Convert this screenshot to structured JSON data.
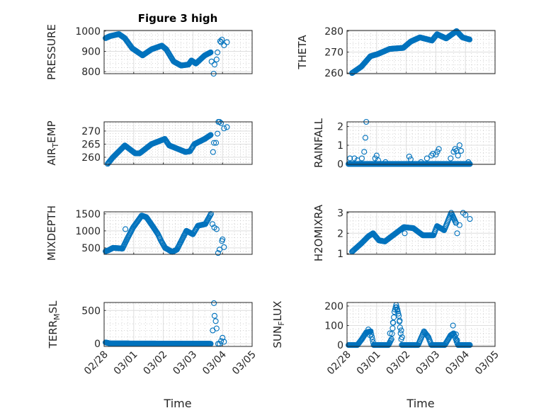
{
  "title": "Figure 3 high",
  "marker_color": "#0072BD",
  "xlabel": "Time",
  "x_ticks": [
    "02/28",
    "03/01",
    "03/02",
    "03/03",
    "03/04",
    "03/05"
  ],
  "chart_data": [
    {
      "type": "scatter",
      "id": "pressure",
      "ylabel": {
        "main": "PRESSURE",
        "sub": "",
        "rest": ""
      },
      "ylim": [
        790,
        1003
      ],
      "yticks": [
        800,
        900,
        1000
      ],
      "xlim": [
        0,
        5
      ],
      "trend": [
        [
          0.05,
          965
        ],
        [
          0.2,
          975
        ],
        [
          0.5,
          985
        ],
        [
          0.7,
          965
        ],
        [
          0.95,
          915
        ],
        [
          1.3,
          880
        ],
        [
          1.6,
          910
        ],
        [
          1.95,
          928
        ],
        [
          2.1,
          910
        ],
        [
          2.35,
          850
        ],
        [
          2.6,
          830
        ],
        [
          2.85,
          835
        ],
        [
          2.95,
          855
        ],
        [
          3.1,
          840
        ],
        [
          3.4,
          880
        ],
        [
          3.6,
          895
        ]
      ],
      "points": [
        [
          3.63,
          850
        ],
        [
          3.7,
          790
        ],
        [
          3.73,
          835
        ],
        [
          3.8,
          860
        ],
        [
          3.83,
          895
        ],
        [
          3.92,
          950
        ],
        [
          3.95,
          945
        ],
        [
          3.98,
          958
        ],
        [
          4.05,
          930
        ],
        [
          4.15,
          945
        ]
      ]
    },
    {
      "type": "scatter",
      "id": "theta",
      "ylabel": {
        "main": "THETA",
        "sub": "",
        "rest": ""
      },
      "ylim": [
        259.7,
        280.3
      ],
      "yticks": [
        260,
        270,
        280
      ],
      "xlim": [
        0,
        5
      ],
      "trend": [
        [
          0.17,
          260
        ],
        [
          0.48,
          263
        ],
        [
          0.79,
          268
        ],
        [
          1.03,
          269
        ],
        [
          1.44,
          271.5
        ],
        [
          1.9,
          272
        ],
        [
          2.15,
          275
        ],
        [
          2.46,
          277
        ],
        [
          2.87,
          275.5
        ],
        [
          3.04,
          278.5
        ],
        [
          3.35,
          276.5
        ],
        [
          3.7,
          280
        ],
        [
          3.9,
          277
        ],
        [
          4.14,
          276
        ]
      ],
      "points": []
    },
    {
      "type": "scatter",
      "id": "air_temp",
      "ylabel": {
        "main": "AIR",
        "sub": "T",
        "rest": "EMP"
      },
      "ylim": [
        257.3,
        273.5
      ],
      "yticks": [
        260,
        265,
        270
      ],
      "xlim": [
        0,
        5
      ],
      "trend": [
        [
          0.12,
          257.5
        ],
        [
          0.3,
          260
        ],
        [
          0.7,
          264.5
        ],
        [
          1.05,
          261.5
        ],
        [
          1.2,
          261.5
        ],
        [
          1.6,
          265
        ],
        [
          2.05,
          267
        ],
        [
          2.2,
          264.5
        ],
        [
          2.75,
          262
        ],
        [
          2.9,
          262.3
        ],
        [
          3.05,
          265
        ],
        [
          3.4,
          267
        ],
        [
          3.6,
          268.5
        ]
      ],
      "points": [
        [
          3.68,
          262
        ],
        [
          3.71,
          265.5
        ],
        [
          3.78,
          265.5
        ],
        [
          3.83,
          269
        ],
        [
          3.86,
          273.5
        ],
        [
          3.9,
          273.5
        ],
        [
          3.95,
          273
        ],
        [
          4.05,
          271
        ],
        [
          4.15,
          271.5
        ]
      ]
    },
    {
      "type": "scatter",
      "id": "rainfall",
      "ylabel": {
        "main": "RAINFALL",
        "sub": "",
        "rest": ""
      },
      "ylim": [
        -0.02,
        2.25
      ],
      "yticks": [
        0,
        1,
        2
      ],
      "xlim": [
        0,
        5
      ],
      "trend": [
        [
          0.05,
          0
        ],
        [
          4.15,
          0
        ]
      ],
      "points": [
        [
          0.65,
          2.25
        ],
        [
          0.62,
          1.4
        ],
        [
          0.58,
          0.65
        ],
        [
          0.5,
          0.3
        ],
        [
          0.1,
          0.3
        ],
        [
          0.25,
          0.3
        ],
        [
          0.35,
          0.2
        ],
        [
          1.0,
          0.45
        ],
        [
          0.95,
          0.3
        ],
        [
          1.05,
          0.2
        ],
        [
          1.3,
          0.1
        ],
        [
          2.1,
          0.4
        ],
        [
          2.15,
          0.25
        ],
        [
          2.5,
          0.1
        ],
        [
          2.7,
          0.3
        ],
        [
          2.85,
          0.45
        ],
        [
          2.9,
          0.55
        ],
        [
          3.0,
          0.5
        ],
        [
          3.05,
          0.65
        ],
        [
          3.1,
          0.8
        ],
        [
          3.5,
          0.3
        ],
        [
          3.6,
          0.65
        ],
        [
          3.65,
          0.8
        ],
        [
          3.7,
          0.7
        ],
        [
          3.75,
          0.45
        ],
        [
          3.8,
          1.0
        ],
        [
          3.85,
          0.7
        ],
        [
          4.1,
          0.1
        ]
      ]
    },
    {
      "type": "scatter",
      "id": "mixdepth",
      "ylabel": {
        "main": "MIXDEPTH",
        "sub": "",
        "rest": ""
      },
      "ylim": [
        310,
        1560
      ],
      "yticks": [
        500,
        1000,
        1500
      ],
      "xlim": [
        0,
        5
      ],
      "trend": [
        [
          0.05,
          400
        ],
        [
          0.15,
          430
        ],
        [
          0.3,
          500
        ],
        [
          0.62,
          480
        ],
        [
          0.8,
          800
        ],
        [
          0.98,
          1100
        ],
        [
          1.27,
          1450
        ],
        [
          1.43,
          1400
        ],
        [
          1.67,
          1100
        ],
        [
          1.82,
          900
        ],
        [
          1.93,
          700
        ],
        [
          2.06,
          500
        ],
        [
          2.3,
          380
        ],
        [
          2.46,
          450
        ],
        [
          2.78,
          1000
        ],
        [
          3.0,
          900
        ],
        [
          3.17,
          1150
        ],
        [
          3.42,
          1200
        ],
        [
          3.61,
          1500
        ]
      ],
      "points": [
        [
          0.72,
          1050
        ],
        [
          3.66,
          1200
        ],
        [
          3.72,
          1100
        ],
        [
          3.8,
          1050
        ],
        [
          3.85,
          350
        ],
        [
          3.9,
          450
        ],
        [
          3.98,
          700
        ],
        [
          4.0,
          750
        ],
        [
          4.05,
          520
        ]
      ]
    },
    {
      "type": "scatter",
      "id": "h2omixratio",
      "ylabel": {
        "main": "H2OMIXRA",
        "sub": "",
        "rest": ""
      },
      "ylim": [
        0.97,
        3.05
      ],
      "yticks": [
        1,
        2,
        3
      ],
      "xlim": [
        0,
        5
      ],
      "trend": [
        [
          0.17,
          1.1
        ],
        [
          0.48,
          1.5
        ],
        [
          0.72,
          1.85
        ],
        [
          0.88,
          2.0
        ],
        [
          1.08,
          1.65
        ],
        [
          1.28,
          1.6
        ],
        [
          1.92,
          2.3
        ],
        [
          2.24,
          2.25
        ],
        [
          2.56,
          1.9
        ],
        [
          2.92,
          1.9
        ],
        [
          3.04,
          2.35
        ],
        [
          3.28,
          2.15
        ],
        [
          3.52,
          3.0
        ],
        [
          3.68,
          2.5
        ]
      ],
      "points": [
        [
          1.95,
          2.0
        ],
        [
          3.72,
          2.0
        ],
        [
          3.8,
          2.4
        ],
        [
          3.92,
          3.0
        ],
        [
          4.0,
          2.9
        ],
        [
          4.15,
          2.7
        ]
      ]
    },
    {
      "type": "scatter",
      "id": "terr_msl",
      "ylabel": {
        "main": "TERR",
        "sub": "M",
        "rest": "SL"
      },
      "ylim": [
        -40,
        620
      ],
      "yticks": [
        0,
        500
      ],
      "xlim": [
        0,
        5
      ],
      "trend": [
        [
          0.05,
          20
        ],
        [
          0.2,
          5
        ],
        [
          3.6,
          0
        ]
      ],
      "points": [
        [
          3.67,
          200
        ],
        [
          3.71,
          610
        ],
        [
          3.73,
          420
        ],
        [
          3.77,
          340
        ],
        [
          3.8,
          230
        ],
        [
          3.85,
          0
        ],
        [
          3.9,
          0
        ],
        [
          3.95,
          40
        ],
        [
          4.0,
          90
        ],
        [
          4.05,
          30
        ]
      ]
    },
    {
      "type": "scatter",
      "id": "sun_flux",
      "ylabel": {
        "main": "SUN",
        "sub": "F",
        "rest": "LUX"
      },
      "ylim": [
        -7,
        218
      ],
      "yticks": [
        0,
        100,
        200
      ],
      "xlim": [
        0,
        5
      ],
      "trend": [
        [
          0.05,
          0
        ],
        [
          0.35,
          0
        ],
        [
          0.5,
          30
        ],
        [
          0.65,
          65
        ],
        [
          0.8,
          70
        ],
        [
          0.9,
          0
        ],
        [
          1.4,
          0
        ],
        [
          1.5,
          30
        ],
        [
          1.6,
          170
        ],
        [
          1.66,
          205
        ],
        [
          1.75,
          150
        ],
        [
          1.85,
          0
        ],
        [
          2.4,
          0
        ],
        [
          2.6,
          70
        ],
        [
          2.75,
          40
        ],
        [
          2.85,
          0
        ],
        [
          3.3,
          0
        ],
        [
          3.5,
          50
        ],
        [
          3.6,
          60
        ],
        [
          3.75,
          0
        ],
        [
          4.15,
          0
        ]
      ],
      "points": [
        [
          1.45,
          60
        ],
        [
          1.55,
          115
        ],
        [
          1.7,
          180
        ],
        [
          1.78,
          125
        ],
        [
          1.83,
          75
        ],
        [
          1.86,
          40
        ],
        [
          0.72,
          80
        ],
        [
          0.78,
          50
        ],
        [
          3.58,
          100
        ],
        [
          3.68,
          55
        ],
        [
          3.72,
          25
        ]
      ]
    }
  ]
}
